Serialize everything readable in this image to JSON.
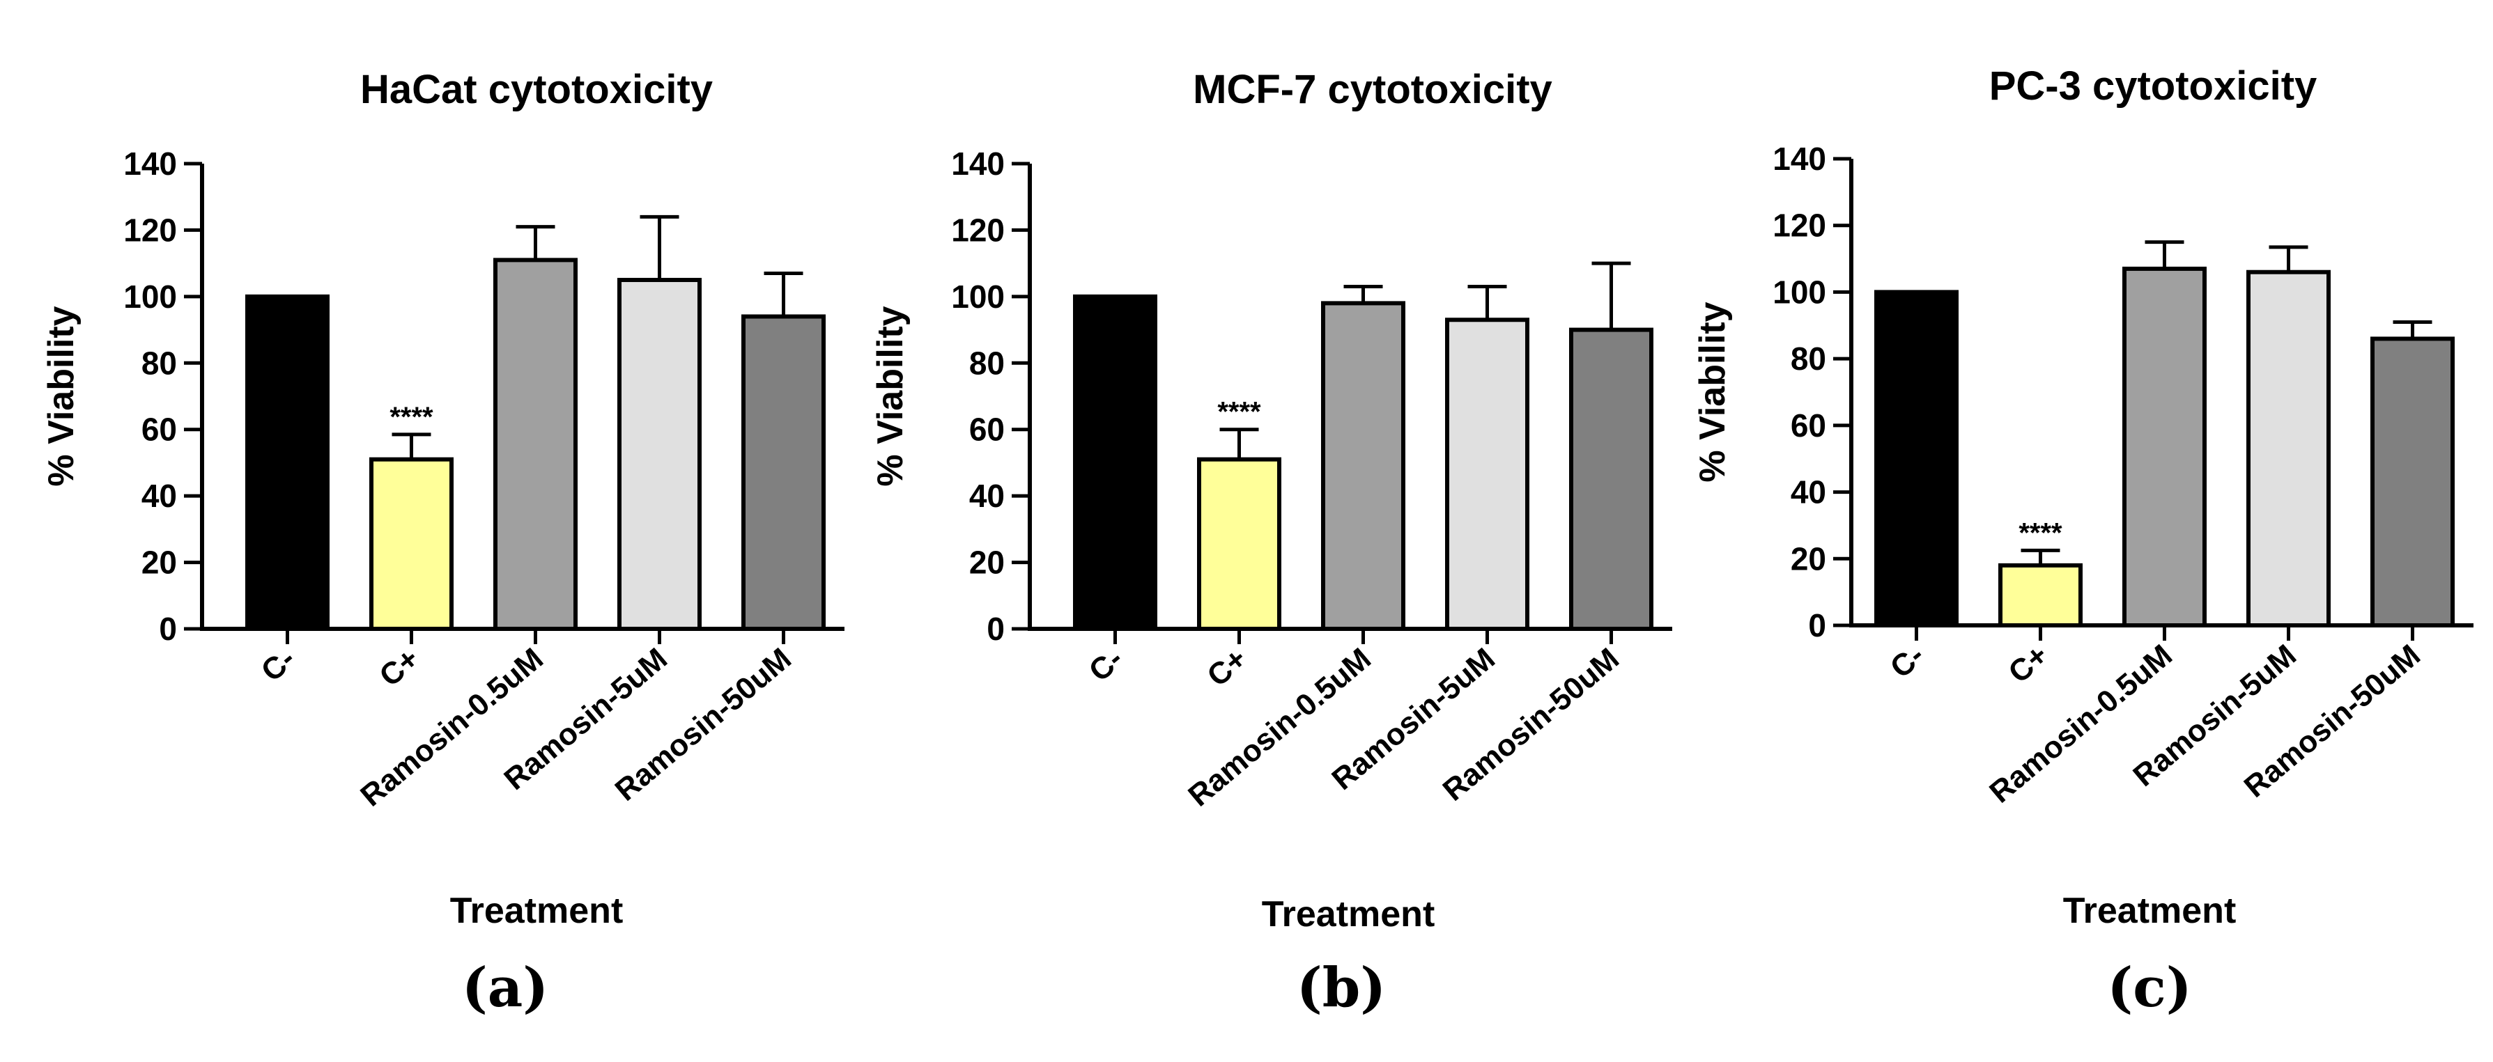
{
  "chart_data": [
    {
      "type": "bar",
      "panel_label": "(a)",
      "title": "HaCat cytotoxicity",
      "xlabel": "Treatment",
      "ylabel": "% Viability",
      "ylim": [
        0,
        140
      ],
      "yticks": [
        0,
        20,
        40,
        60,
        80,
        100,
        120,
        140
      ],
      "categories": [
        "C-",
        "C+",
        "Ramosin-0.5uM",
        "Ramosin-5uM",
        "Ramosin-50uM"
      ],
      "values": [
        100,
        51,
        111,
        105,
        94
      ],
      "errors": [
        0,
        7.5,
        10,
        19,
        13
      ],
      "colors": [
        "#000000",
        "#ffff99",
        "#a0a0a0",
        "#e0e0e0",
        "#808080"
      ],
      "annotations": [
        {
          "category": "C+",
          "text": "****"
        }
      ]
    },
    {
      "type": "bar",
      "panel_label": "(b)",
      "title": "MCF-7 cytotoxicity",
      "xlabel": "Treatment",
      "ylabel": "% Viability",
      "ylim": [
        0,
        140
      ],
      "yticks": [
        0,
        20,
        40,
        60,
        80,
        100,
        120,
        140
      ],
      "categories": [
        "C-",
        "C+",
        "Ramosin-0.5uM",
        "Ramosin-5uM",
        "Ramosin-50uM"
      ],
      "values": [
        100,
        51,
        98,
        93,
        90
      ],
      "errors": [
        0,
        9,
        5,
        10,
        20
      ],
      "colors": [
        "#000000",
        "#ffff99",
        "#a0a0a0",
        "#e0e0e0",
        "#808080"
      ],
      "annotations": [
        {
          "category": "C+",
          "text": "****"
        }
      ]
    },
    {
      "type": "bar",
      "panel_label": "(c)",
      "title": "PC-3 cytotoxicity",
      "xlabel": "Treatment",
      "ylabel": "% Viability",
      "ylim": [
        0,
        140
      ],
      "yticks": [
        0,
        20,
        40,
        60,
        80,
        100,
        120,
        140
      ],
      "categories": [
        "C-",
        "C+",
        "Ramosin-0.5uM",
        "Ramosin-5uM",
        "Ramosin-50uM"
      ],
      "values": [
        100,
        18,
        107,
        106,
        86
      ],
      "errors": [
        0,
        4.5,
        8,
        7.5,
        5
      ],
      "colors": [
        "#000000",
        "#ffff99",
        "#a0a0a0",
        "#e0e0e0",
        "#808080"
      ],
      "annotations": [
        {
          "category": "C+",
          "text": "****"
        }
      ]
    }
  ]
}
